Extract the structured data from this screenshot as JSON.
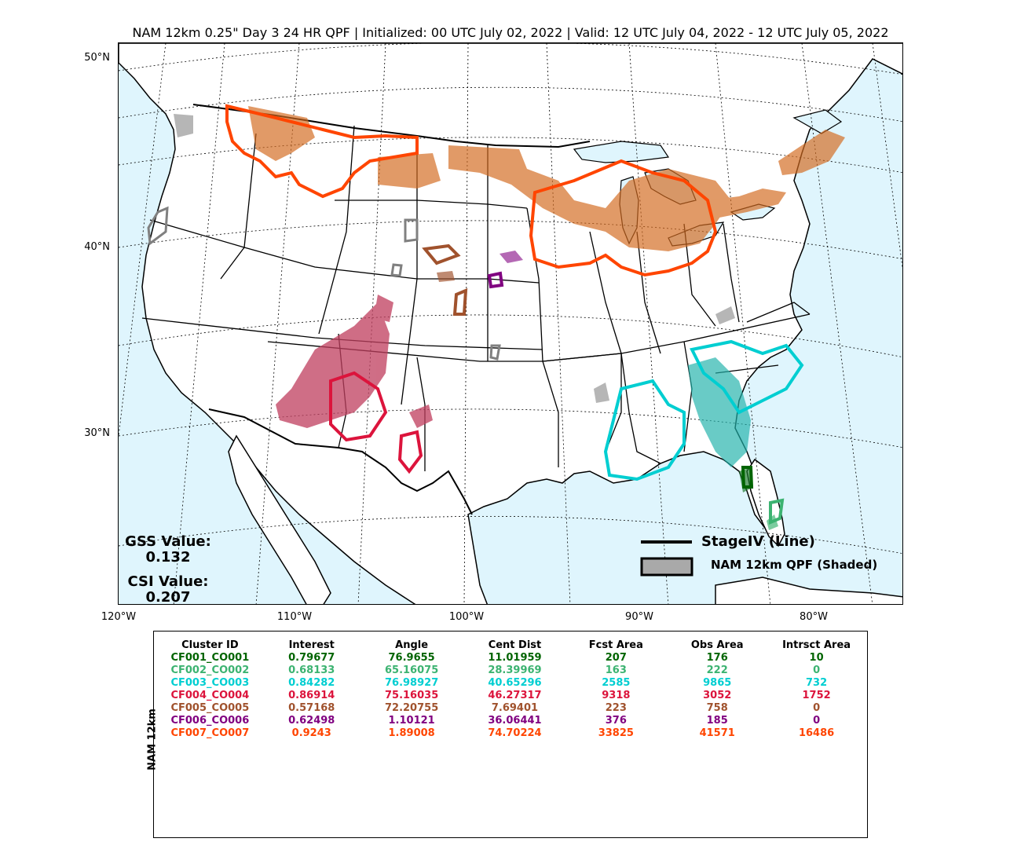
{
  "title": "NAM 12km 0.25\" Day 3 24 HR QPF | Initialized: 00 UTC July 02, 2022 | Valid: 12 UTC July 04, 2022 - 12 UTC July 05, 2022",
  "lat_labels": [
    "50°N",
    "40°N",
    "30°N"
  ],
  "lon_labels": [
    "120°W",
    "110°W",
    "100°W",
    "90°W",
    "80°W"
  ],
  "stats": {
    "gss_label": "GSS Value:",
    "gss_value": "0.132",
    "csi_label": "CSI Value:",
    "csi_value": "0.207"
  },
  "legend": {
    "line_label": "StageIV (Line)",
    "shaded_label": "NAM 12km QPF (Shaded)"
  },
  "side_label": "NAM 12km",
  "table": {
    "headers": [
      "Cluster ID",
      "Interest",
      "Angle",
      "Cent Dist",
      "Fcst Area",
      "Obs Area",
      "Intrsct Area"
    ],
    "rows": [
      {
        "color": "#006400",
        "cells": [
          "CF001_CO001",
          "0.79677",
          "76.9655",
          "11.01959",
          "207",
          "176",
          "10"
        ]
      },
      {
        "color": "#3cb371",
        "cells": [
          "CF002_CO002",
          "0.68133",
          "65.16075",
          "28.39969",
          "163",
          "222",
          "0"
        ]
      },
      {
        "color": "#00ced1",
        "cells": [
          "CF003_CO003",
          "0.84282",
          "76.98927",
          "40.65296",
          "2585",
          "9865",
          "732"
        ]
      },
      {
        "color": "#dc143c",
        "cells": [
          "CF004_CO004",
          "0.86914",
          "75.16035",
          "46.27317",
          "9318",
          "3052",
          "1752"
        ]
      },
      {
        "color": "#a0522d",
        "cells": [
          "CF005_CO005",
          "0.57168",
          "72.20755",
          "7.69401",
          "223",
          "758",
          "0"
        ]
      },
      {
        "color": "#800080",
        "cells": [
          "CF006_CO006",
          "0.62498",
          "1.10121",
          "36.06441",
          "376",
          "185",
          "0"
        ]
      },
      {
        "color": "#ff4500",
        "cells": [
          "CF007_CO007",
          "0.9243",
          "1.89008",
          "74.70224",
          "33825",
          "41571",
          "16486"
        ]
      }
    ]
  },
  "colors": {
    "ocean": "#dff5fd",
    "land": "#ffffff",
    "unmatched": "#808080"
  }
}
